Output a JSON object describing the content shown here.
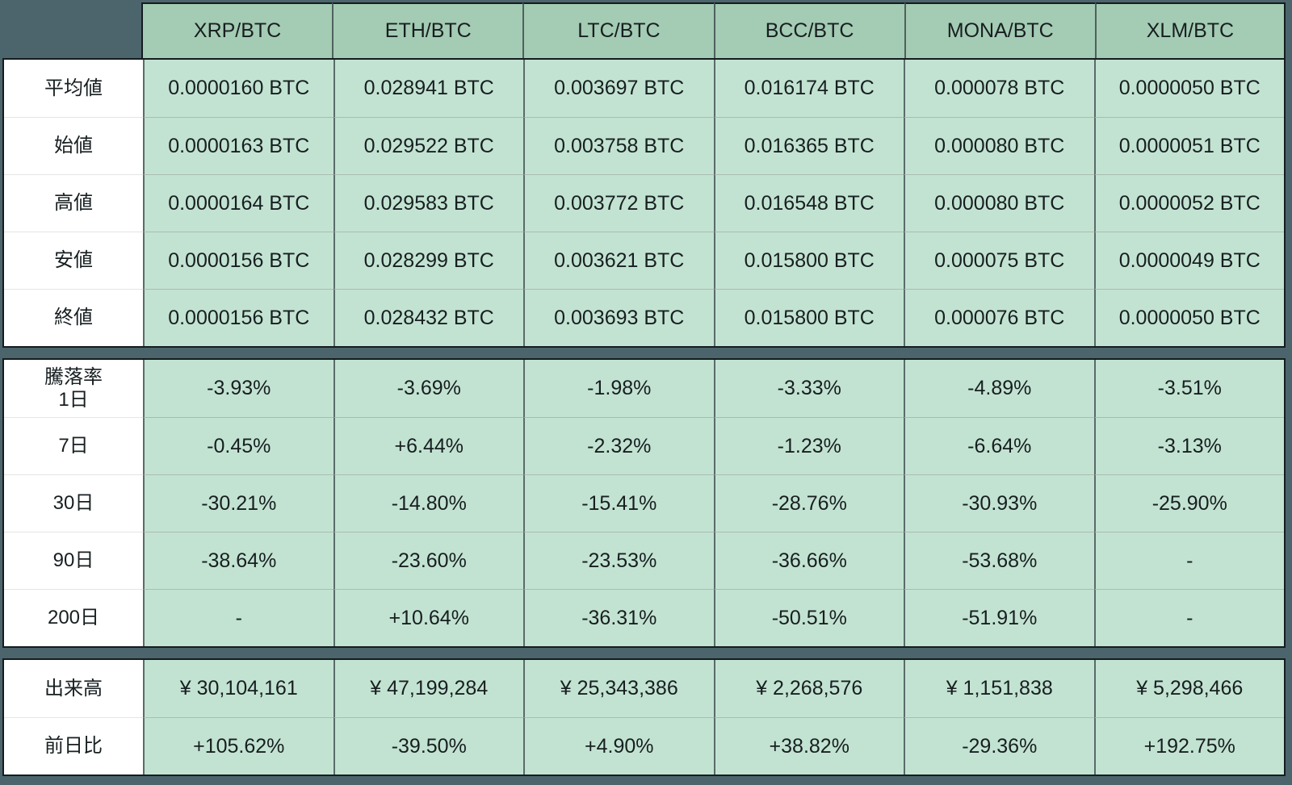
{
  "colors": {
    "page_background": "#4c656d",
    "header_cell": "#a4cbb3",
    "data_cell": "#c3e3d2",
    "label_cell": "#ffffff",
    "text": "#171f21"
  },
  "chart_data": {
    "type": "table",
    "column_headers": [
      "XRP/BTC",
      "ETH/BTC",
      "LTC/BTC",
      "BCC/BTC",
      "MONA/BTC",
      "XLM/BTC"
    ],
    "sections": [
      {
        "id": "prices",
        "rows": [
          {
            "label": "平均値",
            "values": [
              "0.0000160 BTC",
              "0.028941 BTC",
              "0.003697 BTC",
              "0.016174 BTC",
              "0.000078 BTC",
              "0.0000050 BTC"
            ]
          },
          {
            "label": "始値",
            "values": [
              "0.0000163 BTC",
              "0.029522 BTC",
              "0.003758 BTC",
              "0.016365 BTC",
              "0.000080 BTC",
              "0.0000051 BTC"
            ]
          },
          {
            "label": "高値",
            "values": [
              "0.0000164 BTC",
              "0.029583 BTC",
              "0.003772 BTC",
              "0.016548 BTC",
              "0.000080 BTC",
              "0.0000052 BTC"
            ]
          },
          {
            "label": "安値",
            "values": [
              "0.0000156 BTC",
              "0.028299 BTC",
              "0.003621 BTC",
              "0.015800 BTC",
              "0.000075 BTC",
              "0.0000049 BTC"
            ]
          },
          {
            "label": "終値",
            "values": [
              "0.0000156 BTC",
              "0.028432 BTC",
              "0.003693 BTC",
              "0.015800 BTC",
              "0.000076 BTC",
              "0.0000050 BTC"
            ]
          }
        ]
      },
      {
        "id": "change",
        "rows": [
          {
            "label": "騰落率\n1日",
            "values": [
              "-3.93%",
              "-3.69%",
              "-1.98%",
              "-3.33%",
              "-4.89%",
              "-3.51%"
            ]
          },
          {
            "label": "7日",
            "values": [
              "-0.45%",
              "+6.44%",
              "-2.32%",
              "-1.23%",
              "-6.64%",
              "-3.13%"
            ]
          },
          {
            "label": "30日",
            "values": [
              "-30.21%",
              "-14.80%",
              "-15.41%",
              "-28.76%",
              "-30.93%",
              "-25.90%"
            ]
          },
          {
            "label": "90日",
            "values": [
              "-38.64%",
              "-23.60%",
              "-23.53%",
              "-36.66%",
              "-53.68%",
              "-"
            ]
          },
          {
            "label": "200日",
            "values": [
              "-",
              "+10.64%",
              "-36.31%",
              "-50.51%",
              "-51.91%",
              "-"
            ]
          }
        ]
      },
      {
        "id": "volume",
        "rows": [
          {
            "label": "出来高",
            "values": [
              "¥ 30,104,161",
              "¥ 47,199,284",
              "¥ 25,343,386",
              "¥ 2,268,576",
              "¥ 1,151,838",
              "¥ 5,298,466"
            ]
          },
          {
            "label": "前日比",
            "values": [
              "+105.62%",
              "-39.50%",
              "+4.90%",
              "+38.82%",
              "-29.36%",
              "+192.75%"
            ]
          }
        ]
      }
    ]
  }
}
